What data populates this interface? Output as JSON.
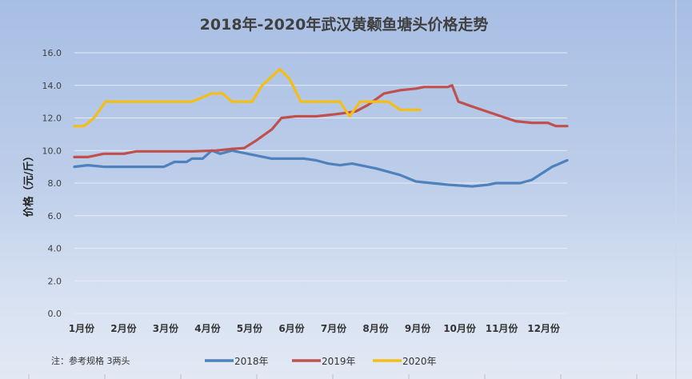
{
  "chart_data": {
    "type": "line",
    "title": "2018年-2020年武汉黄颡鱼塘头价格走势",
    "xlabel": "",
    "ylabel": "价格（元/斤）",
    "ylim": [
      0,
      16
    ],
    "xlim": [
      0.83,
      12.56
    ],
    "yticks": [
      "0.0",
      "2.0",
      "4.0",
      "6.0",
      "8.0",
      "10.0",
      "12.0",
      "14.0",
      "16.0"
    ],
    "categories": [
      "1月份",
      "2月份",
      "3月份",
      "4月份",
      "5月份",
      "6月份",
      "7月份",
      "8月份",
      "9月份",
      "10月份",
      "11月份",
      "12月份"
    ],
    "grid": true,
    "legend_position": "bottom",
    "note": "注：参考规格  3两头",
    "series": [
      {
        "name": "2018年",
        "color": "#4f81bd",
        "x": [
          0.83,
          1.15,
          1.53,
          2.96,
          3.21,
          3.5,
          3.63,
          3.88,
          4.1,
          4.3,
          4.58,
          5.15,
          5.53,
          6.3,
          6.58,
          6.87,
          7.15,
          7.44,
          8.01,
          8.58,
          8.96,
          9.34,
          9.72,
          10.3,
          10.68,
          10.87,
          11.44,
          11.72,
          12.2,
          12.56
        ],
        "y": [
          9.0,
          9.1,
          9.0,
          9.0,
          9.3,
          9.3,
          9.5,
          9.5,
          10.0,
          9.8,
          10.0,
          9.7,
          9.5,
          9.5,
          9.4,
          9.2,
          9.1,
          9.2,
          8.9,
          8.5,
          8.1,
          8.0,
          7.9,
          7.8,
          7.9,
          8.0,
          8.0,
          8.2,
          9.0,
          9.4
        ]
      },
      {
        "name": "2019年",
        "color": "#c0504d",
        "x": [
          0.83,
          1.15,
          1.53,
          2.01,
          2.3,
          3.63,
          4.2,
          4.58,
          4.87,
          5.15,
          5.53,
          5.76,
          6.1,
          6.58,
          6.96,
          7.25,
          7.53,
          7.82,
          8.2,
          8.58,
          8.96,
          9.15,
          9.72,
          9.82,
          9.97,
          10.3,
          10.87,
          11.34,
          11.72,
          12.1,
          12.29,
          12.56
        ],
        "y": [
          9.6,
          9.6,
          9.8,
          9.8,
          9.95,
          9.95,
          10.0,
          10.1,
          10.15,
          10.6,
          11.3,
          12.0,
          12.1,
          12.1,
          12.2,
          12.3,
          12.4,
          12.8,
          13.5,
          13.7,
          13.8,
          13.9,
          13.9,
          14.0,
          13.0,
          12.7,
          12.2,
          11.8,
          11.7,
          11.7,
          11.5,
          11.5
        ]
      },
      {
        "name": "2020年",
        "color": "#f5be14",
        "x": [
          0.83,
          1.06,
          1.3,
          1.57,
          3.63,
          3.82,
          4.1,
          4.35,
          4.58,
          5.06,
          5.3,
          5.72,
          5.95,
          6.22,
          7.15,
          7.38,
          7.63,
          8.3,
          8.58,
          9.06
        ],
        "y": [
          11.5,
          11.5,
          12.0,
          13.0,
          13.0,
          13.2,
          13.5,
          13.5,
          13.0,
          13.0,
          14.0,
          15.0,
          14.4,
          13.0,
          13.0,
          12.1,
          13.0,
          13.0,
          12.5,
          12.5
        ]
      }
    ]
  }
}
